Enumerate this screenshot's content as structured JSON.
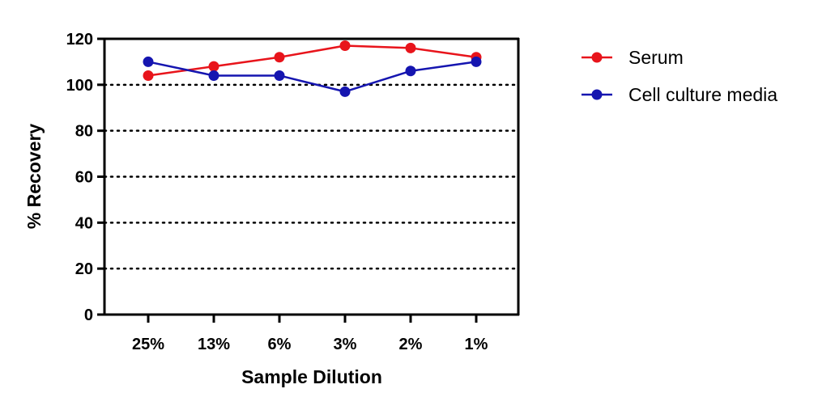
{
  "chart_data": {
    "type": "line",
    "title": "",
    "xlabel": "Sample Dilution",
    "ylabel": "% Recovery",
    "categories": [
      "25%",
      "13%",
      "6%",
      "3%",
      "2%",
      "1%"
    ],
    "ylim": [
      0,
      120
    ],
    "yticks": [
      0,
      20,
      40,
      60,
      80,
      100,
      120
    ],
    "grid": "dotted horizontal lines at 20, 40, 60, 80, 100",
    "legend": "right",
    "series": [
      {
        "name": "Serum",
        "color": "#e8141b",
        "values": [
          104,
          108,
          112,
          117,
          116,
          112
        ]
      },
      {
        "name": "Cell culture media",
        "color": "#1515b0",
        "values": [
          110,
          104,
          104,
          97,
          106,
          110
        ]
      }
    ]
  }
}
